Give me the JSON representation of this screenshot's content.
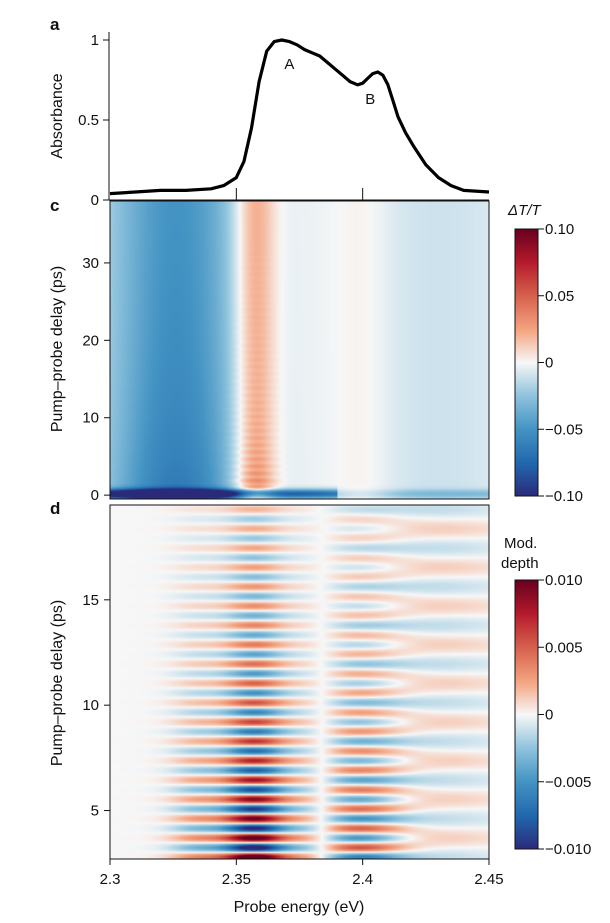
{
  "panels": {
    "a": "a",
    "c": "c",
    "d": "d"
  },
  "chart_data": [
    {
      "panel": "a",
      "type": "line",
      "xlabel": "",
      "ylabel": "Absorbance",
      "xlim": [
        2.3,
        2.45
      ],
      "ylim": [
        0,
        1.05
      ],
      "xticks": [
        2.35,
        2.4
      ],
      "yticks": [
        "0",
        "0.5",
        "1"
      ],
      "ytick_values": [
        0,
        0.5,
        1
      ],
      "series": [
        {
          "name": "Absorbance",
          "x": [
            2.3,
            2.31,
            2.32,
            2.33,
            2.34,
            2.345,
            2.35,
            2.353,
            2.356,
            2.359,
            2.362,
            2.365,
            2.368,
            2.371,
            2.374,
            2.377,
            2.38,
            2.383,
            2.386,
            2.389,
            2.392,
            2.395,
            2.398,
            2.4,
            2.402,
            2.404,
            2.406,
            2.408,
            2.41,
            2.412,
            2.414,
            2.417,
            2.42,
            2.425,
            2.43,
            2.435,
            2.44,
            2.45
          ],
          "y": [
            0.04,
            0.05,
            0.06,
            0.06,
            0.07,
            0.09,
            0.14,
            0.24,
            0.45,
            0.74,
            0.93,
            0.99,
            1.0,
            0.99,
            0.97,
            0.94,
            0.92,
            0.9,
            0.86,
            0.82,
            0.78,
            0.74,
            0.72,
            0.73,
            0.76,
            0.79,
            0.8,
            0.78,
            0.72,
            0.62,
            0.52,
            0.42,
            0.34,
            0.22,
            0.14,
            0.09,
            0.06,
            0.05
          ]
        }
      ],
      "annotations": [
        {
          "text": "A",
          "x": 2.371,
          "y": 0.82
        },
        {
          "text": "B",
          "x": 2.403,
          "y": 0.6
        }
      ]
    },
    {
      "panel": "c",
      "type": "heatmap",
      "xlabel": "",
      "ylabel": "Pump–probe delay (ps)",
      "xlim": [
        2.3,
        2.45
      ],
      "ylim": [
        -0.5,
        38
      ],
      "yticks": [
        "0",
        "10",
        "20",
        "30"
      ],
      "ytick_values": [
        0,
        10,
        20,
        30
      ],
      "colorbar": {
        "title": "ΔT/T",
        "range": [
          -0.1,
          0.1
        ],
        "ticks": [
          "0.10",
          "0.05",
          "0",
          "−0.05",
          "−0.10"
        ],
        "tick_values": [
          0.1,
          0.05,
          0,
          -0.05,
          -0.1
        ]
      },
      "features": [
        {
          "name": "bleach-low",
          "center": 2.326,
          "width": 0.02,
          "amplitude": -0.065
        },
        {
          "name": "induced-absorption",
          "center": 2.357,
          "width": 0.006,
          "amplitude": 0.035
        },
        {
          "name": "weak-positive",
          "center": 2.4,
          "width": 0.008,
          "amplitude": 0.006
        },
        {
          "name": "weak-negative",
          "center": 2.43,
          "width": 0.025,
          "amplitude": -0.01
        }
      ]
    },
    {
      "panel": "d",
      "type": "heatmap",
      "xlabel": "Probe energy (eV)",
      "ylabel": "Pump–probe delay (ps)",
      "xlim": [
        2.3,
        2.45
      ],
      "ylim": [
        2.7,
        19.5
      ],
      "xticks": [
        "2.3",
        "2.35",
        "2.4",
        "2.45"
      ],
      "xtick_values": [
        2.3,
        2.35,
        2.4,
        2.45
      ],
      "yticks": [
        "5",
        "10",
        "15"
      ],
      "ytick_values": [
        5,
        10,
        15
      ],
      "colorbar": {
        "title_line1": "Mod.",
        "title_line2": "depth",
        "range": [
          -0.01,
          0.01
        ],
        "ticks": [
          "0.010",
          "0.005",
          "0",
          "−0.005",
          "−0.010"
        ],
        "tick_values": [
          0.01,
          0.005,
          0,
          -0.005,
          -0.01
        ]
      },
      "oscillation_period_ps": 0.92,
      "features": [
        {
          "name": "main-band",
          "center": 2.357,
          "width": 0.016,
          "amplitude": 0.01
        },
        {
          "name": "side-band",
          "center": 2.398,
          "width": 0.012,
          "amplitude": 0.006
        }
      ]
    }
  ]
}
